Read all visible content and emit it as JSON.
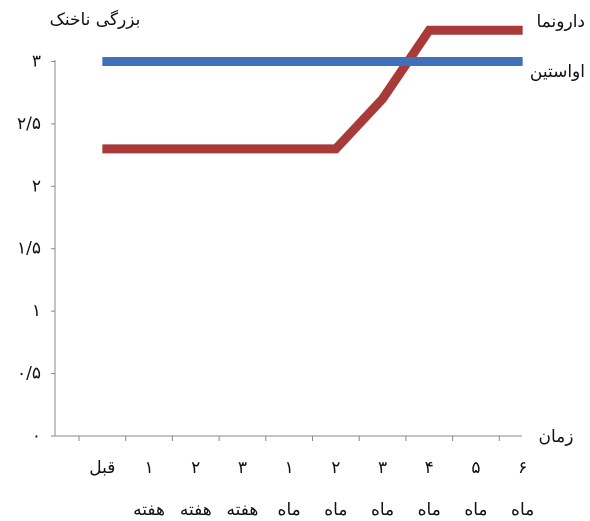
{
  "chart_data": {
    "type": "line",
    "y_label": "بزرگی ناخنک",
    "x_label": "زمان",
    "categories": [
      [
        "قبل"
      ],
      [
        "۱",
        "هفته"
      ],
      [
        "۲",
        "هفته"
      ],
      [
        "۳",
        "هفته"
      ],
      [
        "۱",
        "ماه"
      ],
      [
        "۲",
        "ماه"
      ],
      [
        "۳",
        "ماه"
      ],
      [
        "۴",
        "ماه"
      ],
      [
        "۵",
        "ماه"
      ],
      [
        "۶",
        "ماه"
      ]
    ],
    "series": [
      {
        "name": "دارونما",
        "color": "#a83a3a",
        "values": [
          2.3,
          2.3,
          2.3,
          2.3,
          2.3,
          2.3,
          2.7,
          3.25,
          3.25,
          3.25
        ]
      },
      {
        "name": "اواستین",
        "color": "#3f70b8",
        "values": [
          3,
          3,
          3,
          3,
          3,
          3,
          3,
          3,
          3,
          3
        ]
      }
    ],
    "ylim": [
      0,
      3.3
    ],
    "yticks": [
      {
        "value": 0,
        "label": "۰"
      },
      {
        "value": 0.5,
        "label": "۰/۵"
      },
      {
        "value": 1,
        "label": "۱"
      },
      {
        "value": 1.5,
        "label": "۱/۵"
      },
      {
        "value": 2,
        "label": "۲"
      },
      {
        "value": 2.5,
        "label": "۲/۵"
      },
      {
        "value": 3,
        "label": "۳"
      }
    ]
  }
}
